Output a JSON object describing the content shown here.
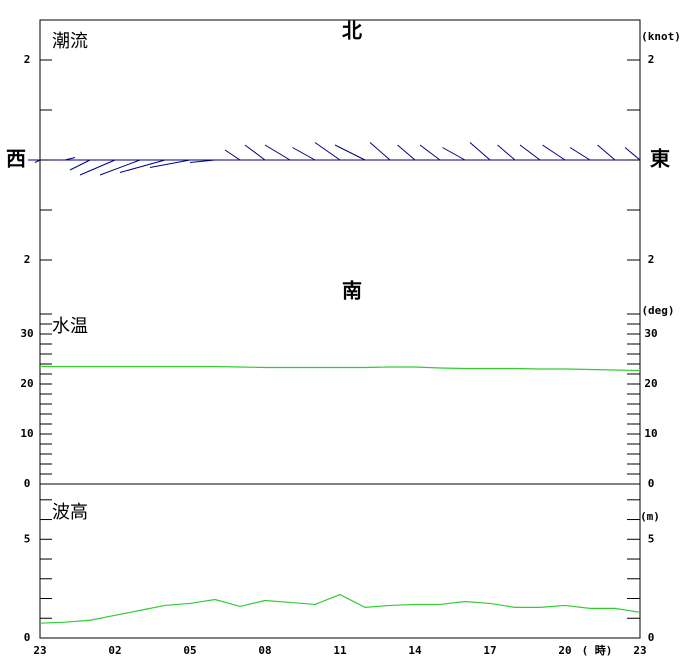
{
  "chart_data": [
    {
      "type": "vector",
      "title": "潮流",
      "unit": "(knot)",
      "north": "北",
      "south": "南",
      "west": "西",
      "east": "東",
      "color": "#000080",
      "u": [
        -0.1,
        0.2,
        -0.4,
        -0.7,
        -0.8,
        -0.9,
        -0.8,
        -0.5,
        -0.3,
        -0.4,
        -0.5,
        -0.45,
        -0.5,
        -0.6,
        -0.4,
        -0.35,
        -0.4,
        -0.45,
        -0.4,
        -0.35,
        -0.4,
        -0.45,
        -0.4,
        -0.35,
        -0.3
      ],
      "v": [
        -0.05,
        0.05,
        -0.2,
        -0.3,
        -0.3,
        -0.25,
        -0.15,
        -0.05,
        0.2,
        0.3,
        0.3,
        0.25,
        0.35,
        0.3,
        0.35,
        0.3,
        0.3,
        0.25,
        0.35,
        0.3,
        0.3,
        0.3,
        0.25,
        0.3,
        0.25
      ],
      "ylim": [
        -3,
        2.8
      ],
      "yticks": [
        2,
        {
          "value": -2,
          "label": "2"
        }
      ],
      "minor_yticks": [
        1,
        0,
        -1
      ]
    },
    {
      "type": "line",
      "title": "水温",
      "unit": "(deg)",
      "color": "#33cc33",
      "values": [
        23.5,
        23.5,
        23.5,
        23.5,
        23.5,
        23.5,
        23.5,
        23.5,
        23.4,
        23.3,
        23.3,
        23.3,
        23.3,
        23.3,
        23.4,
        23.4,
        23.2,
        23.1,
        23.1,
        23.1,
        23.0,
        23.0,
        22.9,
        22.8,
        22.7
      ],
      "ylim": [
        0,
        34.8
      ],
      "yticks": [
        0,
        10,
        20,
        30
      ],
      "minor_yticks": [
        2,
        4,
        6,
        8,
        12,
        14,
        16,
        18,
        22,
        24,
        26,
        28,
        32,
        34
      ]
    },
    {
      "type": "line",
      "title": "波高",
      "unit": "(m)",
      "color": "#33cc33",
      "x_label": "( 時)",
      "categories": [
        "23",
        null,
        null,
        "02",
        null,
        null,
        "05",
        null,
        null,
        "08",
        null,
        null,
        "11",
        null,
        null,
        "14",
        null,
        null,
        "17",
        null,
        null,
        "20",
        null,
        null,
        "23"
      ],
      "values": [
        0.75,
        0.8,
        0.9,
        1.15,
        1.4,
        1.65,
        1.75,
        1.95,
        1.6,
        1.9,
        1.8,
        1.7,
        2.2,
        1.55,
        1.65,
        1.7,
        1.7,
        1.85,
        1.75,
        1.55,
        1.55,
        1.65,
        1.5,
        1.5,
        1.3
      ],
      "ylim": [
        0,
        7.8
      ],
      "yticks": [
        0,
        5
      ],
      "minor_yticks": [
        1,
        2,
        3,
        4,
        6,
        7
      ]
    }
  ]
}
